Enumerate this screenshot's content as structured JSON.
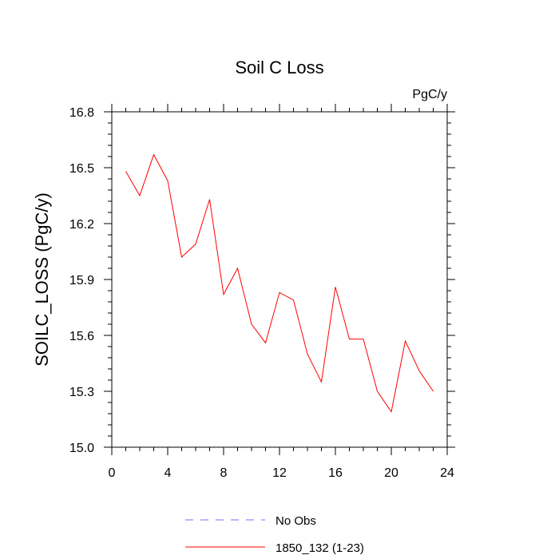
{
  "chart_data": {
    "type": "line",
    "title": "Soil C Loss",
    "units_label": "PgC/y",
    "xlabel": "",
    "ylabel": "SOILC_LOSS  (PgC/y)",
    "xlim": [
      0,
      24
    ],
    "ylim": [
      15.0,
      16.8
    ],
    "x_ticks": [
      0,
      4,
      8,
      12,
      16,
      20,
      24
    ],
    "y_ticks": [
      15.0,
      15.3,
      15.6,
      15.9,
      16.2,
      16.5,
      16.8
    ],
    "x_tick_labels": [
      "0",
      "4",
      "8",
      "12",
      "16",
      "20",
      "24"
    ],
    "y_tick_labels": [
      "15.0",
      "15.3",
      "15.6",
      "15.9",
      "16.2",
      "16.5",
      "16.8"
    ],
    "series": [
      {
        "name": "1850_132 (1-23)",
        "color": "#ff0000",
        "x": [
          1,
          2,
          3,
          4,
          5,
          6,
          7,
          8,
          9,
          10,
          11,
          12,
          13,
          14,
          15,
          16,
          17,
          18,
          19,
          20,
          21,
          22,
          23
        ],
        "values": [
          16.48,
          16.35,
          16.57,
          16.43,
          16.02,
          16.09,
          16.33,
          15.82,
          15.96,
          15.66,
          15.56,
          15.83,
          15.79,
          15.5,
          15.35,
          15.86,
          15.58,
          15.58,
          15.3,
          15.19,
          15.57,
          15.41,
          15.3
        ]
      }
    ],
    "legend": [
      {
        "label": "No Obs",
        "color": "#6f6fff",
        "style": "dashed"
      },
      {
        "label": "1850_132 (1-23)",
        "color": "#ff0000",
        "style": "solid"
      }
    ]
  }
}
